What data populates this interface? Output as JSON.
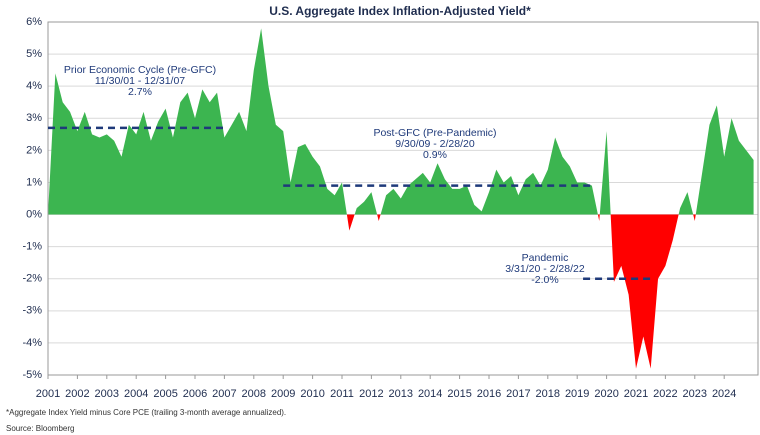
{
  "chart_data": {
    "type": "area",
    "title": "U.S. Aggregate Index Inflation-Adjusted Yield*",
    "footnote": "*Aggregate Index Yield minus Core PCE (trailing 3-month average annualized).",
    "source": "Source: Bloomberg",
    "positive_color": "#3cb550",
    "negative_color": "#ff0000",
    "x": [
      2001,
      2001.25,
      2001.5,
      2001.75,
      2002,
      2002.25,
      2002.5,
      2002.75,
      2003,
      2003.25,
      2003.5,
      2003.75,
      2004,
      2004.25,
      2004.5,
      2004.75,
      2005,
      2005.25,
      2005.5,
      2005.75,
      2006,
      2006.25,
      2006.5,
      2006.75,
      2007,
      2007.25,
      2007.5,
      2007.75,
      2008,
      2008.25,
      2008.5,
      2008.75,
      2009,
      2009.25,
      2009.5,
      2009.75,
      2010,
      2010.25,
      2010.5,
      2010.75,
      2011,
      2011.25,
      2011.5,
      2011.75,
      2012,
      2012.25,
      2012.5,
      2012.75,
      2013,
      2013.25,
      2013.5,
      2013.75,
      2014,
      2014.25,
      2014.5,
      2014.75,
      2015,
      2015.25,
      2015.5,
      2015.75,
      2016,
      2016.25,
      2016.5,
      2016.75,
      2017,
      2017.25,
      2017.5,
      2017.75,
      2018,
      2018.25,
      2018.5,
      2018.75,
      2019,
      2019.25,
      2019.5,
      2019.75,
      2020,
      2020.25,
      2020.5,
      2020.75,
      2021,
      2021.25,
      2021.5,
      2021.75,
      2022,
      2022.25,
      2022.5,
      2022.75,
      2023,
      2023.25,
      2023.5,
      2023.75,
      2024,
      2024.25,
      2024.5,
      2024.75,
      2025
    ],
    "values": [
      0,
      4.4,
      3.5,
      3.2,
      2.6,
      3.2,
      2.5,
      2.4,
      2.5,
      2.3,
      1.8,
      2.8,
      2.5,
      3.2,
      2.3,
      2.9,
      3.3,
      2.4,
      3.5,
      3.8,
      3.0,
      3.9,
      3.5,
      3.8,
      2.4,
      2.8,
      3.2,
      2.6,
      4.5,
      5.8,
      4.0,
      2.8,
      2.6,
      1.0,
      2.1,
      2.2,
      1.8,
      1.5,
      0.8,
      0.6,
      1.0,
      -0.5,
      0.2,
      0.4,
      0.7,
      -0.2,
      0.6,
      0.8,
      0.5,
      0.9,
      1.1,
      1.3,
      1.0,
      1.6,
      1.1,
      0.8,
      0.8,
      0.9,
      0.3,
      0.1,
      0.7,
      1.4,
      1.0,
      1.2,
      0.6,
      1.1,
      1.3,
      0.9,
      1.4,
      2.4,
      1.8,
      1.5,
      1.0,
      1.0,
      0.9,
      -0.2,
      2.6,
      -2.1,
      -1.6,
      -2.5,
      -4.8,
      -3.8,
      -4.8,
      -2.0,
      -1.6,
      -0.8,
      0.2,
      0.7,
      -0.2,
      1.3,
      2.8,
      3.4,
      1.8,
      3.0,
      2.3,
      2.0,
      1.7
    ],
    "xlim": [
      2001,
      2025.15
    ],
    "xticks": [
      2001,
      2002,
      2003,
      2004,
      2005,
      2006,
      2007,
      2008,
      2009,
      2010,
      2011,
      2012,
      2013,
      2014,
      2015,
      2016,
      2017,
      2018,
      2019,
      2020,
      2021,
      2022,
      2023,
      2024
    ],
    "ylim": [
      -5,
      6
    ],
    "yticks": [
      {
        "value": -5,
        "label": "-5%"
      },
      {
        "value": -4,
        "label": "-4%"
      },
      {
        "value": -3,
        "label": "-3%"
      },
      {
        "value": -2,
        "label": "-2%"
      },
      {
        "value": -1,
        "label": "-1%"
      },
      {
        "value": 0,
        "label": "0%"
      },
      {
        "value": 1,
        "label": "1%"
      },
      {
        "value": 2,
        "label": "2%"
      },
      {
        "value": 3,
        "label": "3%"
      },
      {
        "value": 4,
        "label": "4%"
      },
      {
        "value": 5,
        "label": "5%"
      },
      {
        "value": 6,
        "label": "6%"
      }
    ],
    "grid": true,
    "averages": [
      {
        "lines": [
          "Prior Economic Cycle (Pre-GFC)",
          "11/30/01 - 12/31/07"
        ],
        "value": 2.7,
        "value_label": "2.7%",
        "x_start": 2001,
        "x_end": 2007.1
      },
      {
        "lines": [
          "Post-GFC (Pre-Pandemic)",
          "9/30/09 - 2/28/20"
        ],
        "value": 0.9,
        "value_label": "0.9%",
        "x_start": 2009,
        "x_end": 2019.5
      },
      {
        "lines": [
          "Pandemic",
          "3/31/20 - 2/28/22"
        ],
        "value": -2.0,
        "value_label": "-2.0%",
        "x_start": 2019.2,
        "x_end": 2021.6
      }
    ]
  }
}
